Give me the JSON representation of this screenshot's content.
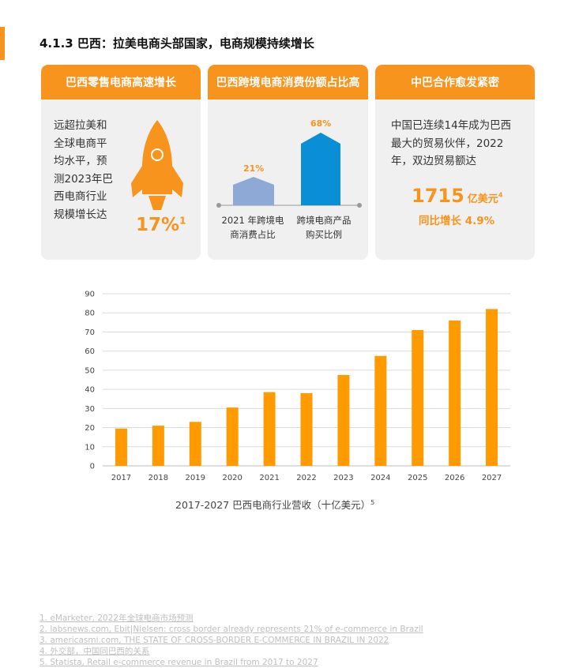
{
  "section": {
    "title": "4.1.3 巴西：拉美电商头部国家，电商规模持续增长"
  },
  "cards": [
    {
      "title": "巴西零售电商高速增长",
      "text_lines": [
        "远超拉美和",
        "全球电商平",
        "均水平，预",
        "测2023年巴",
        "西电商行业",
        "规模增长达"
      ],
      "highlight": "17%",
      "footnote_ref": "1"
    },
    {
      "title": "巴西跨境电商消费份额占比高",
      "bars": [
        {
          "value": "21%",
          "label_lines": [
            "2021 年跨境电",
            "商消费占比"
          ],
          "color": "#8fa9d6"
        },
        {
          "value": "68%",
          "label_lines": [
            "跨境电商产品",
            "购买比例"
          ],
          "color": "#0a8fd6"
        }
      ]
    },
    {
      "title": "中巴合作愈发紧密",
      "text_lines": [
        "中国已连续14年成为巴西",
        "最大的贸易伙伴，2022",
        "年，双边贸易额达"
      ],
      "big_number": "1715",
      "unit": "亿美元",
      "unit_ref": "4",
      "growth": "同比增长 4.9%"
    }
  ],
  "chart_data": {
    "type": "bar",
    "title": "2017-2027 巴西电商行业营收（十亿美元）",
    "title_ref": "5",
    "categories": [
      "2017",
      "2018",
      "2019",
      "2020",
      "2021",
      "2022",
      "2023",
      "2024",
      "2025",
      "2026",
      "2027"
    ],
    "values": [
      19.5,
      21,
      23,
      30.5,
      38.5,
      38,
      47.5,
      57.5,
      71,
      76,
      82
    ],
    "ylim": [
      0,
      90
    ],
    "yticks": [
      0,
      10,
      20,
      30,
      40,
      50,
      60,
      70,
      80,
      90
    ],
    "bar_color": "#ff9a00",
    "grid": true
  },
  "footnotes": [
    "1. eMarketer, 2022年全球电商市场预测",
    "2. labsnews.com, Ebit|Nielsen: cross border already represents 21% of e-commerce in Brazil",
    "3. americasmi.com, THE STATE OF CROSS-BORDER E-COMMERCE IN BRAZIL IN 2022",
    "4. 外交部，中国同巴西的关系",
    "5. Statista, Retail e-commerce revenue in Brazil from 2017 to 2027"
  ]
}
